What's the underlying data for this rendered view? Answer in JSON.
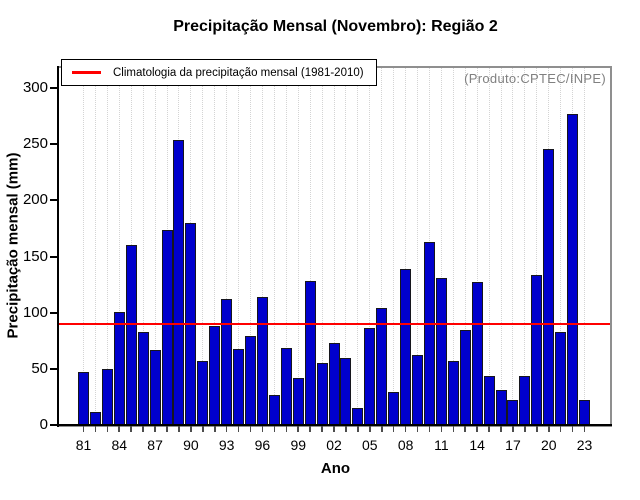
{
  "title": "Precipitação Mensal (Novembro): Região 2",
  "annotation": "(Produto:CPTEC/INPE)",
  "legend": {
    "label": "Climatologia da precipitação mensal (1981-2010)",
    "line_color": "#ff0000"
  },
  "axes": {
    "x_label": "Ano",
    "y_label": "Precipitação mensal (mm)"
  },
  "chart_data": {
    "type": "bar",
    "title": "Precipitação Mensal (Novembro): Região 2",
    "xlabel": "Ano",
    "ylabel": "Precipitação mensal (mm)",
    "categories": [
      1981,
      1982,
      1983,
      1984,
      1985,
      1986,
      1987,
      1988,
      1989,
      1990,
      1991,
      1992,
      1993,
      1994,
      1995,
      1996,
      1997,
      1998,
      1999,
      2000,
      2001,
      2002,
      2003,
      2004,
      2005,
      2006,
      2007,
      2008,
      2009,
      2010,
      2011,
      2012,
      2013,
      2014,
      2015,
      2016,
      2017,
      2018,
      2019,
      2020,
      2021,
      2022,
      2023
    ],
    "values": [
      47,
      12,
      50,
      101,
      160,
      83,
      67,
      174,
      254,
      180,
      57,
      88,
      112,
      68,
      79,
      114,
      27,
      69,
      42,
      128,
      55,
      73,
      60,
      15,
      86,
      104,
      29,
      139,
      62,
      163,
      131,
      57,
      85,
      127,
      44,
      31,
      22,
      44,
      134,
      246,
      83,
      277,
      22
    ],
    "climatology_value": 90,
    "climatology_label": "Climatologia da precipitação mensal (1981-2010)",
    "yticks": [
      0,
      50,
      100,
      150,
      200,
      250,
      300
    ],
    "ylim": [
      0,
      318
    ],
    "x_tick_labels": [
      "81",
      "84",
      "87",
      "90",
      "93",
      "96",
      "99",
      "02",
      "05",
      "08",
      "11",
      "14",
      "17",
      "20",
      "23"
    ],
    "x_label_every": 3,
    "bar_color": "#0000cd",
    "climatology_color": "#ff0000",
    "grid": "vertical-dotted",
    "legend_position": "top-left",
    "annotation": "(Produto:CPTEC/INPE)"
  }
}
